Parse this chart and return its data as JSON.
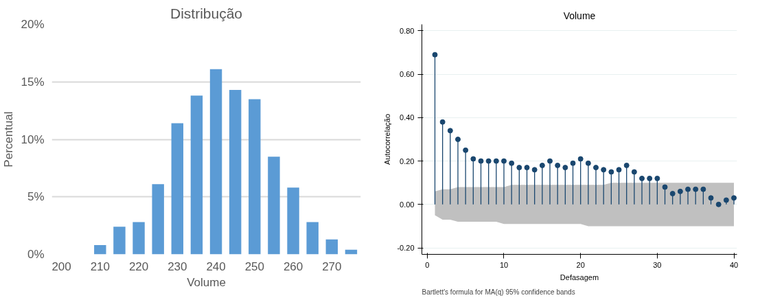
{
  "chart_data": [
    {
      "type": "bar",
      "title": "Distribução",
      "xlabel": "Volume",
      "ylabel": "Percentual",
      "x": [
        210,
        215,
        220,
        225,
        230,
        235,
        240,
        245,
        250,
        255,
        260,
        265,
        270,
        275
      ],
      "values": [
        0.8,
        2.4,
        2.8,
        6.1,
        11.4,
        13.8,
        16.1,
        14.3,
        13.5,
        8.5,
        5.8,
        2.8,
        1.3,
        0.4
      ],
      "color": "#5b9bd5",
      "xlim": [
        197.5,
        277.5
      ],
      "xticks": [
        200,
        210,
        220,
        230,
        240,
        250,
        260,
        270
      ],
      "ylim": [
        0,
        20
      ],
      "yticks": [
        {
          "value": 0,
          "label": "0%"
        },
        {
          "value": 5,
          "label": "5%"
        },
        {
          "value": 10,
          "label": "10%"
        },
        {
          "value": 15,
          "label": "15%"
        },
        {
          "value": 20,
          "label": "20%"
        }
      ],
      "grid": "y"
    },
    {
      "type": "lollipop",
      "title": "Volume",
      "xlabel": "Defasagem",
      "ylabel": "Autocorrelação",
      "annotations": [
        "Bartlett's formula for MA(q) 95% confidence bands"
      ],
      "series": [
        {
          "type": "lollipop",
          "color": "#1a476f",
          "upper": [
            0.06,
            0.07,
            0.07,
            0.08,
            0.08,
            0.08,
            0.08,
            0.08,
            0.08,
            0.08,
            0.09,
            0.09,
            0.09,
            0.09,
            0.09,
            0.09,
            0.09,
            0.09,
            0.09,
            0.09,
            0.09,
            0.09,
            0.09,
            0.1,
            0.1,
            0.1,
            0.1,
            0.1,
            0.1,
            0.1,
            0.1,
            0.1,
            0.1,
            0.1,
            0.1,
            0.1,
            0.1,
            0.1,
            0.1,
            0.1
          ],
          "lower": [
            -0.05,
            -0.07,
            -0.07,
            -0.08,
            -0.08,
            -0.08,
            -0.08,
            -0.08,
            -0.08,
            -0.09,
            -0.09,
            -0.09,
            -0.09,
            -0.09,
            -0.09,
            -0.09,
            -0.09,
            -0.09,
            -0.09,
            -0.09,
            -0.1,
            -0.1,
            -0.1,
            -0.1,
            -0.1,
            -0.1,
            -0.1,
            -0.1,
            -0.1,
            -0.1,
            -0.1,
            -0.1,
            -0.1,
            -0.1,
            -0.1,
            -0.1,
            -0.1,
            -0.1,
            -0.1,
            -0.1
          ],
          "x": [
            1,
            2,
            3,
            4,
            5,
            6,
            7,
            8,
            9,
            10,
            11,
            12,
            13,
            14,
            15,
            16,
            17,
            18,
            19,
            20,
            21,
            22,
            23,
            24,
            25,
            26,
            27,
            28,
            29,
            30,
            31,
            32,
            33,
            34,
            35,
            36,
            37,
            38,
            39,
            40
          ],
          "values": [
            0.69,
            0.38,
            0.34,
            0.3,
            0.25,
            0.21,
            0.2,
            0.2,
            0.2,
            0.2,
            0.19,
            0.17,
            0.17,
            0.16,
            0.18,
            0.2,
            0.18,
            0.17,
            0.19,
            0.21,
            0.19,
            0.17,
            0.16,
            0.15,
            0.16,
            0.18,
            0.15,
            0.12,
            0.12,
            0.12,
            0.08,
            0.05,
            0.06,
            0.07,
            0.07,
            0.07,
            0.03,
            0.0,
            0.02,
            0.03
          ]
        }
      ],
      "marker": "circle",
      "xlim": [
        -0.7,
        40.4
      ],
      "xticks": [
        0,
        10,
        20,
        30,
        40
      ],
      "ylim": [
        -0.23,
        0.83
      ],
      "yticks": [
        {
          "value": -0.2,
          "label": "-0.20"
        },
        {
          "value": 0,
          "label": "0.00"
        },
        {
          "value": 0.2,
          "label": "0.20"
        },
        {
          "value": 0.4,
          "label": "0.40"
        },
        {
          "value": 0.6,
          "label": "0.60"
        },
        {
          "value": 0.8,
          "label": "0.80"
        }
      ],
      "grid": "y"
    }
  ]
}
